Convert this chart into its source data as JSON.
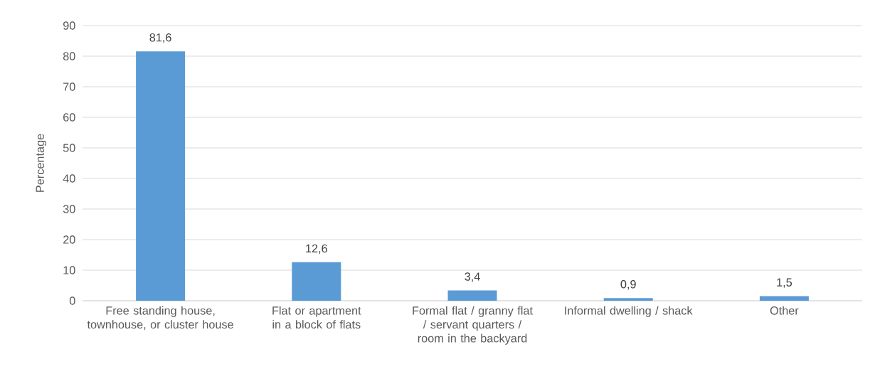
{
  "chart_data": {
    "type": "bar",
    "ylabel": "Percentage",
    "categories": [
      "Free standing house, townhouse, or cluster house",
      "Flat or apartment in a block of flats",
      "Formal flat / granny flat / servant quarters / room in the backyard",
      "Informal dwelling / shack",
      "Other"
    ],
    "values": [
      81.6,
      12.6,
      3.4,
      0.9,
      1.5
    ],
    "value_labels": [
      "81,6",
      "12,6",
      "3,4",
      "0,9",
      "1,5"
    ],
    "color": "#5b9bd5",
    "ylim": [
      0,
      90
    ],
    "yticks": [
      0,
      10,
      20,
      30,
      40,
      50,
      60,
      70,
      80,
      90
    ],
    "grid": "y"
  }
}
